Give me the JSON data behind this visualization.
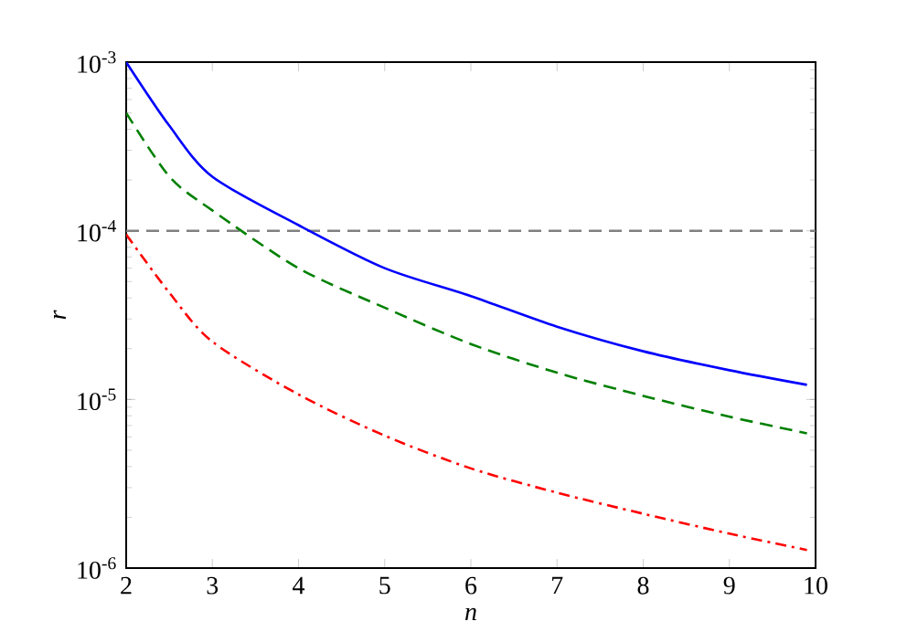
{
  "chart_data": {
    "type": "line",
    "xlabel": "n",
    "ylabel": "r",
    "log": "y",
    "xlim": [
      2,
      10
    ],
    "ylim": [
      1e-06,
      0.001
    ],
    "xticks": [
      2,
      3,
      4,
      5,
      6,
      7,
      8,
      9,
      10
    ],
    "yticks": [
      {
        "value": 1e-06,
        "label": "10$^{-6}$"
      },
      {
        "value": 1e-05,
        "label": "10$^{-5}$"
      },
      {
        "value": 0.0001,
        "label": "10$^{-4}$"
      },
      {
        "value": 0.001,
        "label": "10$^{-3}$"
      }
    ],
    "x": [
      2,
      2.5,
      3,
      4,
      5,
      6,
      7,
      8,
      9,
      9.9
    ],
    "series": [
      {
        "color": "#0000ff",
        "line_style": "solid",
        "values": [
          0.001,
          0.00042,
          0.000209,
          0.000108,
          6e-05,
          4.1e-05,
          2.7e-05,
          1.93e-05,
          1.49e-05,
          1.22e-05
        ]
      },
      {
        "color": "#008000",
        "line_style": "dashed",
        "values": [
          0.0005,
          0.00021,
          0.000132,
          6e-05,
          3.5e-05,
          2.13e-05,
          1.44e-05,
          1.05e-05,
          7.9e-06,
          6.3e-06
        ]
      },
      {
        "color": "#ff0000",
        "line_style": "dashdot",
        "values": [
          9.5e-05,
          4.3e-05,
          2.2e-05,
          1.07e-05,
          6.1e-06,
          3.9e-06,
          2.8e-06,
          2.1e-06,
          1.6e-06,
          1.28e-06
        ]
      }
    ],
    "ref_lines": [
      {
        "axis": "y",
        "value": 0.0001,
        "color": "#808080",
        "line_style": "dashed"
      }
    ],
    "grid": false
  }
}
